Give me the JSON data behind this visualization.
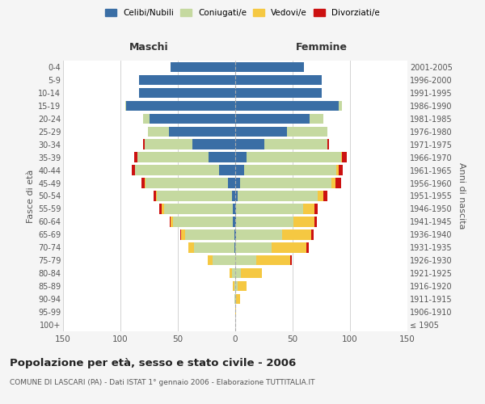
{
  "age_groups": [
    "100+",
    "95-99",
    "90-94",
    "85-89",
    "80-84",
    "75-79",
    "70-74",
    "65-69",
    "60-64",
    "55-59",
    "50-54",
    "45-49",
    "40-44",
    "35-39",
    "30-34",
    "25-29",
    "20-24",
    "15-19",
    "10-14",
    "5-9",
    "0-4"
  ],
  "birth_years": [
    "≤ 1905",
    "1906-1910",
    "1911-1915",
    "1916-1920",
    "1921-1925",
    "1926-1930",
    "1931-1935",
    "1936-1940",
    "1941-1945",
    "1946-1950",
    "1951-1955",
    "1956-1960",
    "1961-1965",
    "1966-1970",
    "1971-1975",
    "1976-1980",
    "1981-1985",
    "1986-1990",
    "1991-1995",
    "1996-2000",
    "2001-2005"
  ],
  "maschi": {
    "celibi": [
      0,
      0,
      0,
      0,
      0,
      0,
      1,
      1,
      2,
      2,
      3,
      6,
      14,
      23,
      37,
      58,
      75,
      95,
      84,
      84,
      56
    ],
    "coniugati": [
      0,
      0,
      1,
      1,
      3,
      20,
      35,
      43,
      52,
      60,
      65,
      72,
      73,
      62,
      42,
      18,
      5,
      1,
      0,
      0,
      0
    ],
    "vedovi": [
      0,
      0,
      0,
      1,
      2,
      4,
      5,
      3,
      2,
      2,
      1,
      1,
      0,
      0,
      0,
      0,
      0,
      0,
      0,
      0,
      0
    ],
    "divorziati": [
      0,
      0,
      0,
      0,
      0,
      0,
      0,
      1,
      1,
      2,
      2,
      3,
      3,
      3,
      1,
      0,
      0,
      0,
      0,
      0,
      0
    ]
  },
  "femmine": {
    "nubili": [
      0,
      0,
      0,
      0,
      0,
      0,
      0,
      1,
      1,
      1,
      2,
      4,
      8,
      10,
      25,
      45,
      65,
      90,
      75,
      75,
      60
    ],
    "coniugate": [
      0,
      0,
      1,
      2,
      5,
      18,
      32,
      40,
      50,
      58,
      70,
      80,
      80,
      82,
      55,
      35,
      12,
      3,
      0,
      0,
      0
    ],
    "vedove": [
      0,
      1,
      3,
      8,
      18,
      30,
      30,
      25,
      18,
      10,
      5,
      3,
      2,
      1,
      0,
      0,
      0,
      0,
      0,
      0,
      0
    ],
    "divorziate": [
      0,
      0,
      0,
      0,
      0,
      1,
      2,
      2,
      2,
      3,
      3,
      5,
      4,
      4,
      2,
      0,
      0,
      0,
      0,
      0,
      0
    ]
  },
  "colors": {
    "celibi": "#3a6ea5",
    "coniugati": "#c5d9a0",
    "vedovi": "#f5c842",
    "divorziati": "#cc1111"
  },
  "title": "Popolazione per età, sesso e stato civile - 2006",
  "subtitle": "COMUNE DI LASCARI (PA) - Dati ISTAT 1° gennaio 2006 - Elaborazione TUTTITALIA.IT",
  "xlabel_left": "Maschi",
  "xlabel_right": "Femmine",
  "ylabel_left": "Fasce di età",
  "ylabel_right": "Anni di nascita",
  "xlim": 150,
  "bg_color": "#f5f5f5",
  "plot_bg": "#ffffff",
  "legend_labels": [
    "Celibi/Nubili",
    "Coniugati/e",
    "Vedovi/e",
    "Divorziati/e"
  ]
}
